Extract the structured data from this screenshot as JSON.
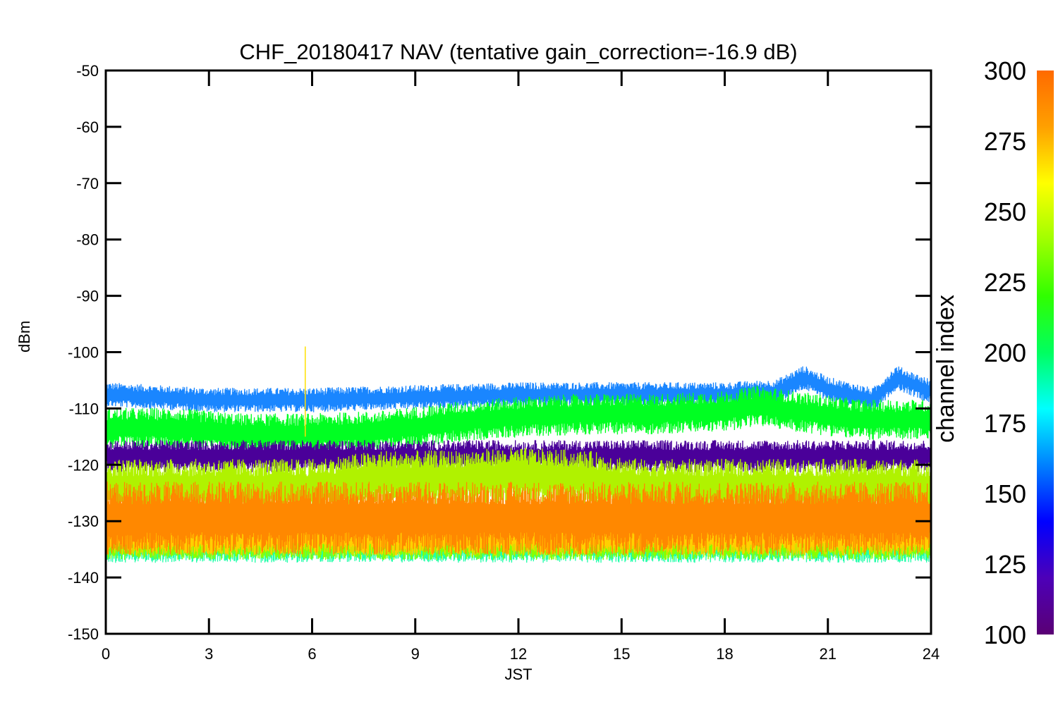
{
  "chart_data": {
    "type": "line",
    "title": "CHF_20180417 NAV (tentative gain_correction=-16.9 dB)",
    "xlabel": "JST",
    "ylabel": "dBm",
    "xlim": [
      0,
      24
    ],
    "ylim": [
      -150,
      -50
    ],
    "x_ticks": [
      "0",
      "3",
      "6",
      "9",
      "12",
      "15",
      "18",
      "21",
      "24"
    ],
    "y_ticks": [
      "-50",
      "-60",
      "-70",
      "-80",
      "-90",
      "-100",
      "-110",
      "-120",
      "-130",
      "-140",
      "-150"
    ],
    "grid": false,
    "colorbar": {
      "label": "channel index",
      "range": [
        100,
        300
      ],
      "ticks": [
        "300",
        "275",
        "250",
        "225",
        "200",
        "175",
        "150",
        "125",
        "100"
      ],
      "colormap": [
        "#5a0074",
        "#4d00b8",
        "#0000ff",
        "#0080ff",
        "#00ffff",
        "#00ff60",
        "#30ff00",
        "#a0ff00",
        "#ffff00",
        "#ffa000",
        "#ff6a00"
      ]
    },
    "series": [
      {
        "channel_band": "~150-160",
        "color": "#1a86ff",
        "x": [
          0,
          3,
          6,
          9,
          12,
          15,
          18,
          19.5,
          20.3,
          21,
          22.3,
          23,
          24
        ],
        "y": [
          -107.5,
          -108.5,
          -108.5,
          -108,
          -107.5,
          -107.5,
          -107.5,
          -107,
          -104.5,
          -106.5,
          -108.5,
          -104.5,
          -107
        ],
        "spread": 1.5
      },
      {
        "channel_band": "~220-230",
        "color": "#00ff22",
        "x": [
          0,
          2,
          4,
          6,
          8,
          10,
          12,
          14,
          16,
          18,
          19,
          20,
          22,
          24
        ],
        "y": [
          -113.5,
          -113.5,
          -114.5,
          -114.5,
          -114,
          -112.5,
          -111.5,
          -111,
          -111,
          -110.5,
          -109.5,
          -110.5,
          -112,
          -112
        ],
        "spread": 2.5
      },
      {
        "channel_band": "~110-120",
        "color": "#4a0099",
        "x": [
          0,
          3,
          6,
          9,
          12,
          15,
          18,
          21,
          24
        ],
        "y": [
          -118.5,
          -118.5,
          -118.5,
          -118.5,
          -118.5,
          -118.5,
          -118.5,
          -118.5,
          -118.5
        ],
        "spread": 2
      },
      {
        "channel_band": "~255-265",
        "color": "#b0f200",
        "x": [
          0,
          3,
          6,
          8,
          10,
          12,
          14,
          15.5,
          18,
          21,
          24
        ],
        "y": [
          -124,
          -124,
          -124,
          -122.5,
          -122.5,
          -122,
          -122.5,
          -124,
          -124,
          -124,
          -124
        ],
        "spread": 3.5
      },
      {
        "channel_band": "~195-200",
        "color": "#22ffaa",
        "x": [
          0,
          24
        ],
        "y": [
          -134.5,
          -134.5
        ],
        "spread": 2
      },
      {
        "channel_band": "~245-250",
        "color": "#88ff00",
        "x": [
          0,
          24
        ],
        "y": [
          -134,
          -134
        ],
        "spread": 2
      },
      {
        "channel_band": "~280-290",
        "color": "#ffd000",
        "x": [
          0,
          24
        ],
        "y": [
          -132.5,
          -132.5
        ],
        "spread": 2.5
      },
      {
        "channel_band": "~290-300",
        "color": "#ff8800",
        "x": [
          0,
          24
        ],
        "y": [
          -129.5,
          -129.5
        ],
        "spread": 4.5
      }
    ],
    "annotations": [
      {
        "x": 5.8,
        "y_from": -115,
        "y_to": -99,
        "color": "#ffe000",
        "note": "spike"
      }
    ]
  }
}
